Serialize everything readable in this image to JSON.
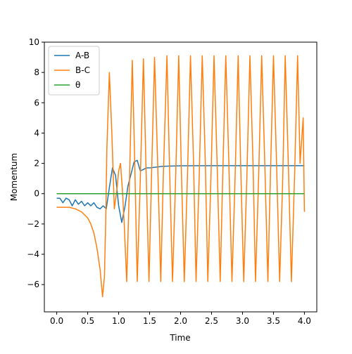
{
  "chart_data": {
    "type": "line",
    "title": "",
    "xlabel": "Time",
    "ylabel": "Momentum",
    "xlim": [
      -0.2,
      4.2
    ],
    "ylim": [
      -7.8,
      10
    ],
    "xticks": [
      0.0,
      0.5,
      1.0,
      1.5,
      2.0,
      2.5,
      3.0,
      3.5,
      4.0
    ],
    "xtick_labels": [
      "0.0",
      "0.5",
      "1.0",
      "1.5",
      "2.0",
      "2.5",
      "3.0",
      "3.5",
      "4.0"
    ],
    "yticks": [
      -6,
      -4,
      -2,
      0,
      2,
      4,
      6,
      8,
      10
    ],
    "ytick_labels": [
      "−6",
      "−4",
      "−2",
      "0",
      "2",
      "4",
      "6",
      "8",
      "10"
    ],
    "grid": false,
    "legend_position": "top-left",
    "series": [
      {
        "name": "A-B",
        "color": "#1f77b4",
        "x": [
          0.0,
          0.05,
          0.1,
          0.15,
          0.2,
          0.25,
          0.3,
          0.35,
          0.4,
          0.45,
          0.5,
          0.55,
          0.6,
          0.65,
          0.7,
          0.75,
          0.8,
          0.85,
          0.9,
          0.95,
          1.0,
          1.05,
          1.1,
          1.15,
          1.2,
          1.25,
          1.3,
          1.35,
          1.4,
          1.45,
          1.5,
          1.6,
          1.7,
          1.8,
          2.0,
          2.5,
          3.0,
          3.5,
          4.0
        ],
        "y": [
          -0.3,
          -0.3,
          -0.6,
          -0.3,
          -0.4,
          -0.8,
          -0.4,
          -0.7,
          -0.5,
          -0.8,
          -0.6,
          -0.8,
          -0.6,
          -0.9,
          -1.0,
          -0.8,
          -1.0,
          0.4,
          1.7,
          1.2,
          -0.8,
          -1.9,
          -0.9,
          0.5,
          1.3,
          2.1,
          2.2,
          1.5,
          1.6,
          1.7,
          1.7,
          1.75,
          1.8,
          1.82,
          1.84,
          1.85,
          1.85,
          1.85,
          1.85
        ]
      },
      {
        "name": "B-C",
        "color": "#ff7f0e",
        "x": [
          0.0,
          0.1,
          0.2,
          0.3,
          0.4,
          0.5,
          0.55,
          0.6,
          0.65,
          0.7,
          0.74,
          0.77,
          0.79,
          0.81,
          0.85,
          0.89,
          0.93,
          0.97,
          1.0,
          1.03,
          1.06,
          1.09,
          1.13,
          1.17,
          1.22,
          1.26,
          1.3,
          1.35,
          1.4,
          1.44,
          1.49,
          1.53,
          1.58,
          1.63,
          1.68,
          1.72,
          1.78,
          1.82,
          1.87,
          1.92,
          1.97,
          2.01,
          2.06,
          2.11,
          2.16,
          2.21,
          2.25,
          2.3,
          2.35,
          2.4,
          2.44,
          2.49,
          2.54,
          2.59,
          2.64,
          2.68,
          2.73,
          2.78,
          2.83,
          2.88,
          2.93,
          2.97,
          3.02,
          3.07,
          3.12,
          3.17,
          3.21,
          3.26,
          3.31,
          3.36,
          3.41,
          3.45,
          3.5,
          3.55,
          3.6,
          3.65,
          3.69,
          3.74,
          3.79,
          3.84,
          3.89,
          3.93,
          3.98,
          4.0
        ],
        "y": [
          -0.9,
          -0.9,
          -0.9,
          -1.0,
          -1.2,
          -1.6,
          -2.0,
          -2.6,
          -3.6,
          -5.0,
          -6.8,
          -5.5,
          -2.0,
          3.0,
          8.0,
          4.0,
          -1.0,
          0.2,
          1.5,
          2.0,
          0.3,
          -2.0,
          -5.8,
          0.0,
          8.8,
          2.0,
          -5.8,
          1.0,
          8.9,
          2.0,
          -5.8,
          1.0,
          9.0,
          2.0,
          -5.8,
          1.0,
          9.1,
          2.0,
          -5.8,
          1.0,
          9.1,
          2.0,
          -5.8,
          1.0,
          9.1,
          2.0,
          -5.8,
          1.0,
          9.1,
          2.0,
          -5.8,
          1.0,
          9.1,
          2.0,
          -5.8,
          1.0,
          9.1,
          2.0,
          -5.8,
          1.0,
          9.1,
          2.0,
          -5.8,
          1.0,
          9.1,
          2.0,
          -5.8,
          1.0,
          9.1,
          2.0,
          -5.8,
          1.0,
          9.1,
          2.0,
          -5.8,
          1.0,
          9.1,
          2.0,
          -5.8,
          1.0,
          9.1,
          2.0,
          5.0,
          -1.2
        ]
      },
      {
        "name": "θ",
        "color": "#2ca02c",
        "x": [
          0.0,
          4.0
        ],
        "y": [
          0.0,
          0.0
        ]
      }
    ]
  }
}
